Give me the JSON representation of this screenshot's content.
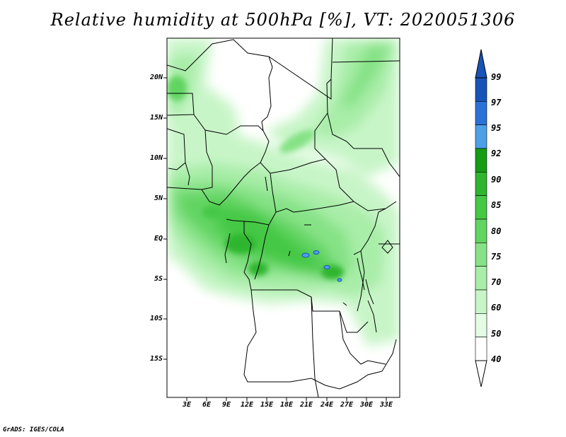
{
  "title": "Relative humidity at 500hPa [%], VT: 2020051306",
  "credit": "GrADS: IGES/COLA",
  "map": {
    "y_labels": [
      "20N",
      "15N",
      "10N",
      "5N",
      "EQ",
      "5S",
      "10S",
      "15S"
    ],
    "x_labels": [
      "3E",
      "6E",
      "9E",
      "12E",
      "15E",
      "18E",
      "21E",
      "24E",
      "27E",
      "30E",
      "33E"
    ]
  },
  "colorbar": {
    "levels": [
      "99",
      "97",
      "95",
      "92",
      "90",
      "85",
      "80",
      "75",
      "70",
      "60",
      "50",
      "40"
    ],
    "colors": [
      "#ffffff",
      "#e4fbe4",
      "#c8f5c8",
      "#a8eda8",
      "#86e286",
      "#62d462",
      "#45c845",
      "#2fb52f",
      "#149c14",
      "#4d9fe8",
      "#2b72d8",
      "#1853b8"
    ]
  }
}
